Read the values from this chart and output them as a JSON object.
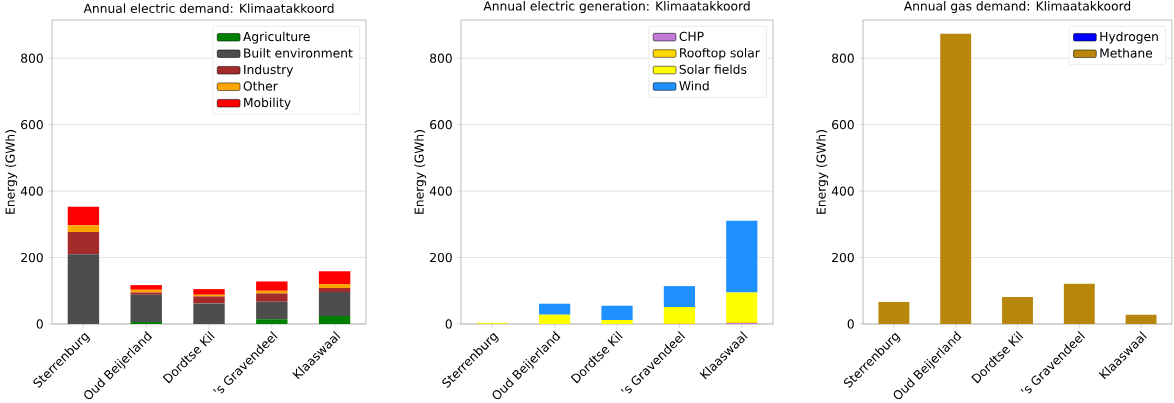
{
  "chart_data": [
    {
      "type": "bar",
      "stacked": true,
      "title": "Annual electric demand: Klimaatakkoord",
      "ylabel": "Energy (GWh)",
      "categories": [
        "Sterrenburg",
        "Oud Beijerland",
        "Dordtse Kil",
        "'s Gravendeel",
        "Klaaswaal"
      ],
      "ylim": [
        0,
        915
      ],
      "yticks": [
        0,
        200,
        400,
        600,
        800
      ],
      "grid": "y",
      "legend": "top right",
      "series": [
        {
          "name": "Agriculture",
          "color": "#008000",
          "values": [
            0,
            6,
            0,
            14,
            24
          ]
        },
        {
          "name": "Built environment",
          "color": "#4d4d4d",
          "values": [
            210,
            82,
            62,
            53,
            72
          ]
        },
        {
          "name": "Industry",
          "color": "#a52a2a",
          "values": [
            67,
            7,
            21,
            25,
            12
          ]
        },
        {
          "name": "Other",
          "color": "#ffa500",
          "values": [
            20,
            8,
            5,
            8,
            12
          ]
        },
        {
          "name": "Mobility",
          "color": "#ff0000",
          "values": [
            56,
            14,
            17,
            28,
            39
          ]
        }
      ]
    },
    {
      "type": "bar",
      "stacked": true,
      "title": "Annual electric generation: Klimaatakkoord",
      "ylabel": "Energy (GWh)",
      "categories": [
        "Sterrenburg",
        "Oud Beijerland",
        "Dordtse Kil",
        "'s Gravendeel",
        "Klaaswaal"
      ],
      "ylim": [
        0,
        915
      ],
      "yticks": [
        0,
        200,
        400,
        600,
        800
      ],
      "grid": "y",
      "legend": "top right",
      "series": [
        {
          "name": "CHP",
          "color": "#c27ad6",
          "values": [
            0,
            0,
            0,
            0,
            3
          ]
        },
        {
          "name": "Rooftop solar",
          "color": "#ffd700",
          "values": [
            1,
            null,
            null,
            3,
            3
          ]
        },
        {
          "name": "Solar fields",
          "color": "#ffff00",
          "values": [
            3,
            28,
            12,
            48,
            89
          ]
        },
        {
          "name": "Wind",
          "color": "#1e90ff",
          "values": [
            null,
            33,
            43,
            63,
            216
          ]
        }
      ]
    },
    {
      "type": "bar",
      "stacked": true,
      "title": "Annual gas demand: Klimaatakkoord",
      "ylabel": "Energy (GWh)",
      "categories": [
        "Sterrenburg",
        "Oud Beijerland",
        "Dordtse Kil",
        "'s Gravendeel",
        "Klaaswaal"
      ],
      "ylim": [
        0,
        915
      ],
      "yticks": [
        0,
        200,
        400,
        600,
        800
      ],
      "grid": "y",
      "legend": "top right",
      "series": [
        {
          "name": "Hydrogen",
          "color": "#0000ff",
          "values": [
            0,
            0,
            0,
            0,
            0
          ]
        },
        {
          "name": "Methane",
          "color": "#b8860b",
          "values": [
            66,
            874,
            81,
            121,
            28
          ]
        }
      ]
    }
  ]
}
